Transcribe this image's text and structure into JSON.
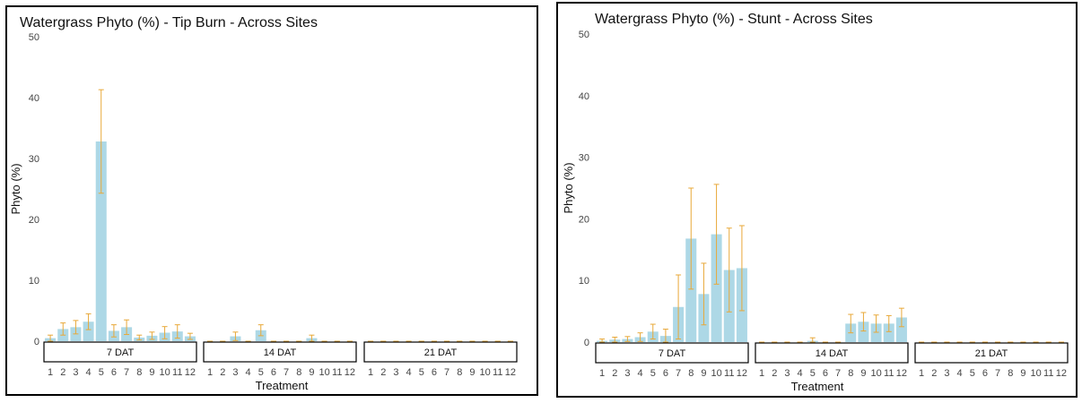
{
  "chart_data": [
    {
      "type": "bar",
      "title": "Watergrass Phyto (%) - Tip Burn - Across Sites",
      "xlabel": "Treatment",
      "ylabel": "Phyto (%)",
      "ylim": [
        0,
        50
      ],
      "yticks": [
        0,
        10,
        20,
        30,
        40,
        50
      ],
      "categories": [
        "1",
        "2",
        "3",
        "4",
        "5",
        "6",
        "7",
        "8",
        "9",
        "10",
        "11",
        "12"
      ],
      "grid": false,
      "facets": [
        {
          "label": "7 DAT",
          "values": [
            0.5,
            2.0,
            2.3,
            3.2,
            32.8,
            1.7,
            2.3,
            0.6,
            0.9,
            1.4,
            1.6,
            0.8
          ],
          "errors": [
            0.5,
            1.0,
            1.1,
            1.3,
            8.5,
            1.0,
            1.2,
            0.4,
            0.6,
            1.0,
            1.1,
            0.5
          ]
        },
        {
          "label": "14 DAT",
          "values": [
            0,
            0,
            0.8,
            0,
            1.8,
            0,
            0,
            0,
            0.5,
            0,
            0,
            0
          ],
          "errors": [
            0,
            0,
            0.7,
            0,
            0.9,
            0,
            0,
            0,
            0.5,
            0,
            0,
            0
          ]
        },
        {
          "label": "21 DAT",
          "values": [
            0,
            0,
            0,
            0,
            0,
            0,
            0,
            0,
            0,
            0,
            0,
            0
          ],
          "errors": [
            0,
            0,
            0,
            0,
            0,
            0,
            0,
            0,
            0,
            0,
            0,
            0
          ]
        }
      ]
    },
    {
      "type": "bar",
      "title": "Watergrass Phyto (%) - Stunt - Across Sites",
      "xlabel": "Treatment",
      "ylabel": "Phyto (%)",
      "ylim": [
        0,
        50
      ],
      "yticks": [
        0,
        10,
        20,
        30,
        40,
        50
      ],
      "categories": [
        "1",
        "2",
        "3",
        "4",
        "5",
        "6",
        "7",
        "8",
        "9",
        "10",
        "11",
        "12"
      ],
      "grid": false,
      "facets": [
        {
          "label": "7 DAT",
          "values": [
            0.2,
            0.4,
            0.5,
            0.8,
            1.7,
            1.0,
            5.7,
            16.8,
            7.8,
            17.5,
            11.7,
            12.0
          ],
          "errors": [
            0.3,
            0.4,
            0.4,
            0.7,
            1.2,
            1.1,
            5.2,
            8.2,
            5.0,
            8.1,
            6.8,
            6.9
          ]
        },
        {
          "label": "14 DAT",
          "values": [
            0,
            0,
            0,
            0,
            0.2,
            0,
            0,
            3.0,
            3.3,
            3.0,
            3.0,
            4.0
          ],
          "errors": [
            0,
            0,
            0,
            0,
            0.5,
            0,
            0,
            1.5,
            1.5,
            1.4,
            1.3,
            1.5
          ]
        },
        {
          "label": "21 DAT",
          "values": [
            0,
            0,
            0,
            0,
            0,
            0,
            0,
            0,
            0,
            0,
            0,
            0
          ],
          "errors": [
            0,
            0,
            0,
            0,
            0,
            0,
            0,
            0,
            0,
            0,
            0,
            0
          ]
        }
      ]
    }
  ],
  "colors": {
    "bar": "#ADD8E6",
    "error_bar": "#E8A838",
    "text": "#111111",
    "tick": "#444444"
  }
}
